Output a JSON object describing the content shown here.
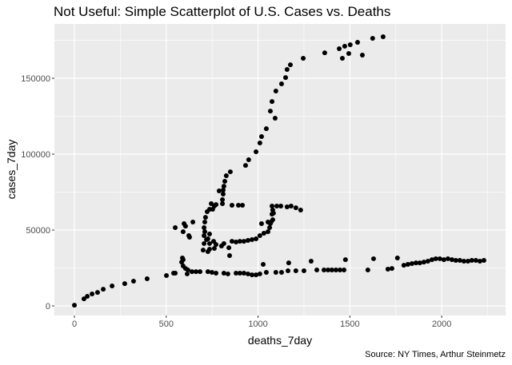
{
  "chart_data": {
    "type": "scatter",
    "title": "Not Useful: Simple Scatterplot of U.S. Cases vs. Deaths",
    "xlabel": "deaths_7day",
    "ylabel": "cases_7day",
    "caption": "Source: NY Times, Arthur Steinmetz",
    "xlim": [
      -109,
      2348
    ],
    "ylim": [
      -6300,
      185800
    ],
    "xticks": [
      0,
      500,
      1000,
      1500,
      2000
    ],
    "xtick_labels": [
      "0",
      "500",
      "1000",
      "1500",
      "2000"
    ],
    "yticks": [
      0,
      50000,
      100000,
      150000
    ],
    "ytick_labels": [
      "0",
      "50000",
      "100000",
      "150000"
    ],
    "grid": true,
    "colors": {
      "panel": "#ebebeb",
      "grid": "#ffffff",
      "point": "#000000"
    },
    "points": [
      [
        0,
        500
      ],
      [
        52,
        4700
      ],
      [
        70,
        6300
      ],
      [
        96,
        7900
      ],
      [
        126,
        8900
      ],
      [
        157,
        11000
      ],
      [
        205,
        13200
      ],
      [
        274,
        14700
      ],
      [
        322,
        16300
      ],
      [
        396,
        17900
      ],
      [
        501,
        20000
      ],
      [
        540,
        21600
      ],
      [
        588,
        31600
      ],
      [
        592,
        30500
      ],
      [
        584,
        28900
      ],
      [
        592,
        26300
      ],
      [
        605,
        24700
      ],
      [
        618,
        23700
      ],
      [
        640,
        22600
      ],
      [
        662,
        22600
      ],
      [
        684,
        22600
      ],
      [
        727,
        22600
      ],
      [
        749,
        22100
      ],
      [
        771,
        21600
      ],
      [
        814,
        21600
      ],
      [
        836,
        21100
      ],
      [
        880,
        21600
      ],
      [
        901,
        21600
      ],
      [
        923,
        21600
      ],
      [
        945,
        21100
      ],
      [
        967,
        20500
      ],
      [
        989,
        20500
      ],
      [
        1010,
        21100
      ],
      [
        1045,
        22100
      ],
      [
        1028,
        27400
      ],
      [
        1097,
        22100
      ],
      [
        1128,
        22100
      ],
      [
        1163,
        23200
      ],
      [
        1167,
        28400
      ],
      [
        1206,
        23200
      ],
      [
        1250,
        23200
      ],
      [
        1289,
        29500
      ],
      [
        1320,
        23700
      ],
      [
        1359,
        23700
      ],
      [
        1381,
        23700
      ],
      [
        1402,
        23700
      ],
      [
        1424,
        23700
      ],
      [
        1446,
        23700
      ],
      [
        1468,
        23700
      ],
      [
        1476,
        30500
      ],
      [
        1598,
        23700
      ],
      [
        1629,
        31100
      ],
      [
        1707,
        24200
      ],
      [
        1729,
        24700
      ],
      [
        1759,
        31600
      ],
      [
        1794,
        26800
      ],
      [
        1816,
        27400
      ],
      [
        1838,
        27900
      ],
      [
        1860,
        28400
      ],
      [
        1881,
        28400
      ],
      [
        1903,
        28900
      ],
      [
        1925,
        29500
      ],
      [
        1947,
        30500
      ],
      [
        1968,
        31100
      ],
      [
        1990,
        31100
      ],
      [
        2012,
        30500
      ],
      [
        2034,
        31100
      ],
      [
        2056,
        30500
      ],
      [
        2077,
        30000
      ],
      [
        2099,
        30000
      ],
      [
        2121,
        29500
      ],
      [
        2143,
        29500
      ],
      [
        2164,
        30000
      ],
      [
        2186,
        30000
      ],
      [
        2208,
        29500
      ],
      [
        2230,
        30000
      ],
      [
        614,
        21100
      ],
      [
        549,
        21600
      ],
      [
        701,
        36800
      ],
      [
        727,
        35800
      ],
      [
        736,
        37400
      ],
      [
        762,
        37900
      ],
      [
        845,
        33200
      ],
      [
        549,
        51600
      ],
      [
        597,
        54200
      ],
      [
        605,
        52600
      ],
      [
        592,
        48900
      ],
      [
        623,
        46300
      ],
      [
        627,
        45300
      ],
      [
        645,
        55300
      ],
      [
        736,
        63700
      ],
      [
        723,
        62100
      ],
      [
        714,
        58400
      ],
      [
        710,
        55300
      ],
      [
        706,
        51600
      ],
      [
        710,
        48900
      ],
      [
        706,
        46300
      ],
      [
        719,
        43700
      ],
      [
        727,
        44200
      ],
      [
        736,
        47400
      ],
      [
        706,
        41100
      ],
      [
        736,
        41100
      ],
      [
        758,
        42600
      ],
      [
        771,
        40500
      ],
      [
        801,
        39500
      ],
      [
        814,
        41100
      ],
      [
        841,
        38400
      ],
      [
        858,
        42600
      ],
      [
        880,
        42100
      ],
      [
        901,
        42600
      ],
      [
        923,
        42600
      ],
      [
        945,
        43200
      ],
      [
        967,
        43700
      ],
      [
        989,
        44200
      ],
      [
        1010,
        46300
      ],
      [
        1032,
        47900
      ],
      [
        1054,
        48900
      ],
      [
        1063,
        51600
      ],
      [
        1067,
        54200
      ],
      [
        1054,
        55300
      ],
      [
        1071,
        55300
      ],
      [
        1080,
        56800
      ],
      [
        1019,
        54200
      ],
      [
        1076,
        60500
      ],
      [
        1084,
        61100
      ],
      [
        1080,
        63200
      ],
      [
        1076,
        65800
      ],
      [
        1102,
        65800
      ],
      [
        1124,
        65800
      ],
      [
        1158,
        65300
      ],
      [
        1180,
        65800
      ],
      [
        1206,
        64700
      ],
      [
        1232,
        63200
      ],
      [
        949,
        96300
      ],
      [
        932,
        92600
      ],
      [
        849,
        88400
      ],
      [
        827,
        85800
      ],
      [
        819,
        82100
      ],
      [
        814,
        78900
      ],
      [
        810,
        76300
      ],
      [
        788,
        75800
      ],
      [
        810,
        73700
      ],
      [
        806,
        70000
      ],
      [
        806,
        67400
      ],
      [
        858,
        66300
      ],
      [
        893,
        66300
      ],
      [
        915,
        66300
      ],
      [
        745,
        67400
      ],
      [
        771,
        66800
      ],
      [
        753,
        63700
      ],
      [
        762,
        65800
      ],
      [
        989,
        101600
      ],
      [
        1010,
        107400
      ],
      [
        1019,
        111600
      ],
      [
        1045,
        116800
      ],
      [
        1093,
        123700
      ],
      [
        1067,
        128400
      ],
      [
        1076,
        134700
      ],
      [
        1097,
        141600
      ],
      [
        1128,
        146300
      ],
      [
        1150,
        150500
      ],
      [
        1158,
        155800
      ],
      [
        1176,
        158900
      ],
      [
        1246,
        163200
      ],
      [
        1363,
        166800
      ],
      [
        1442,
        169500
      ],
      [
        1459,
        163200
      ],
      [
        1472,
        171100
      ],
      [
        1494,
        166300
      ],
      [
        1502,
        172100
      ],
      [
        1542,
        173700
      ],
      [
        1568,
        165300
      ],
      [
        1624,
        176300
      ],
      [
        1681,
        177400
      ]
    ]
  }
}
